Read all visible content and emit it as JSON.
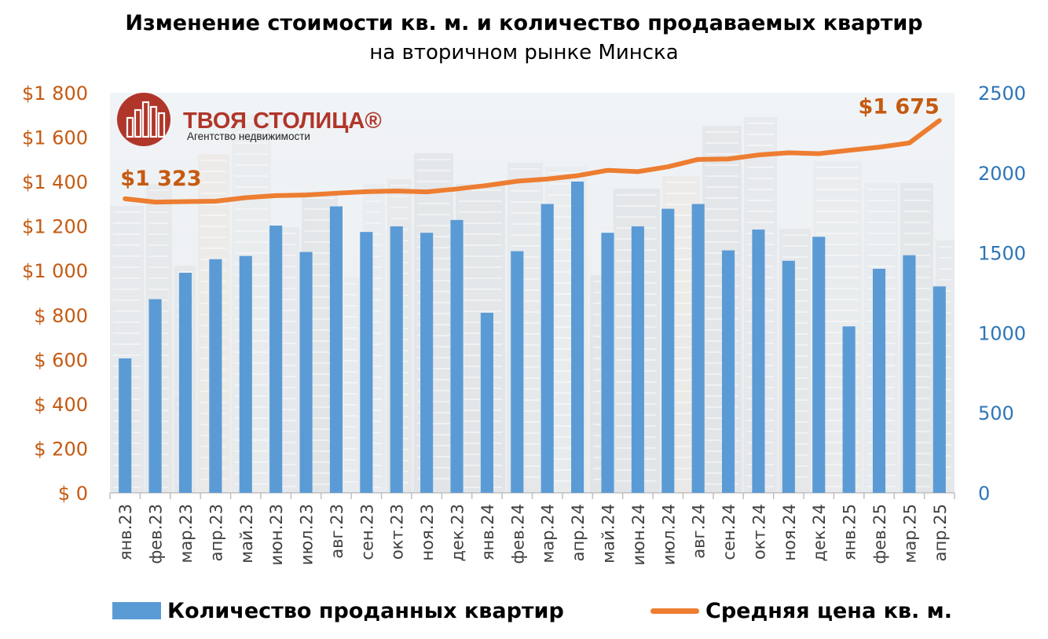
{
  "title": "Изменение стоимости кв. м. и количество продаваемых квартир",
  "subtitle": "на вторичном рынке Минска",
  "logo": {
    "name": "ТВОЯ СТОЛИЦА®",
    "tagline": "Агентство недвижимости",
    "color": "#b0362a"
  },
  "colors": {
    "bars": "#5b9bd5",
    "line": "#ed7d31",
    "left_axis": "#c55a11",
    "right_axis": "#2e75b6"
  },
  "chart_data": {
    "type": "bar+line",
    "categories": [
      "янв.23",
      "фев.23",
      "мар.23",
      "апр.23",
      "май.23",
      "июн.23",
      "июл.23",
      "авг.23",
      "сен.23",
      "окт.23",
      "ноя.23",
      "дек.23",
      "янв.24",
      "фев.24",
      "мар.24",
      "апр.24",
      "май.24",
      "июн.24",
      "июл.24",
      "авг.24",
      "сен.24",
      "окт.24",
      "ноя.24",
      "дек.24",
      "янв.25",
      "фев.25",
      "мар.25",
      "апр.25"
    ],
    "series": [
      {
        "name": "Количество проданных квартир",
        "type": "bar",
        "axis": "right",
        "values": [
          840,
          1210,
          1375,
          1460,
          1480,
          1670,
          1505,
          1790,
          1630,
          1665,
          1625,
          1705,
          1125,
          1510,
          1805,
          1945,
          1625,
          1665,
          1775,
          1805,
          1515,
          1645,
          1450,
          1600,
          1040,
          1400,
          1485,
          1290
        ]
      },
      {
        "name": "Средняя цена кв. м.",
        "type": "line",
        "axis": "left",
        "values": [
          1323,
          1308,
          1310,
          1312,
          1328,
          1337,
          1340,
          1348,
          1355,
          1358,
          1354,
          1367,
          1383,
          1402,
          1412,
          1427,
          1451,
          1445,
          1467,
          1500,
          1502,
          1520,
          1530,
          1526,
          1541,
          1555,
          1574,
          1675
        ]
      }
    ],
    "left_axis": {
      "ylim": [
        0,
        1800
      ],
      "ticks": [
        "$ 0",
        "$ 200",
        "$ 400",
        "$ 600",
        "$ 800",
        "$1 000",
        "$1 200",
        "$1 400",
        "$1 600",
        "$1 800"
      ]
    },
    "right_axis": {
      "ylim": [
        0,
        2500
      ],
      "ticks": [
        "0",
        "500",
        "1000",
        "1500",
        "2000",
        "2500"
      ]
    },
    "annotations": {
      "first": "$1 323",
      "last": "$1 675"
    }
  },
  "legend": {
    "bars": "Количество проданных квартир",
    "line": "Средняя цена кв. м."
  }
}
